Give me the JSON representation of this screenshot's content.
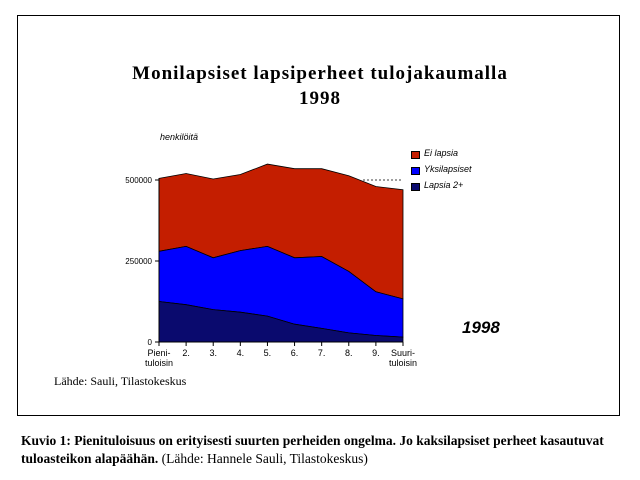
{
  "chart_data": {
    "type": "area",
    "stacked": true,
    "title_line1": "Monilapsiset lapsiperheet tulojakaumalla",
    "title_line2": "1998",
    "ylabel": "henkilöitä",
    "ylim": [
      0,
      500000
    ],
    "y_ticks": [
      {
        "value": 0,
        "label": "0"
      },
      {
        "value": 250000,
        "label": "250000"
      },
      {
        "value": 500000,
        "label": "500000"
      }
    ],
    "categories": [
      "Pieni-\ntuloisin",
      "2.",
      "3.",
      "4.",
      "5.",
      "6.",
      "7.",
      "8.",
      "9.",
      "Suuri-\ntuloisin"
    ],
    "series": [
      {
        "name": "Lapsia 2+",
        "color": "#0a0a6e",
        "values": [
          125000,
          115000,
          100000,
          92000,
          80000,
          55000,
          42000,
          28000,
          20000,
          15000
        ]
      },
      {
        "name": "Yksilapsiset",
        "color": "#0000ff",
        "values": [
          155000,
          180000,
          160000,
          190000,
          215000,
          205000,
          222000,
          190000,
          135000,
          118000
        ]
      },
      {
        "name": "Ei lapsia",
        "color": "#c41e00",
        "values": [
          225000,
          225000,
          243000,
          235000,
          254000,
          275000,
          271000,
          295000,
          325000,
          337000
        ]
      }
    ],
    "legend_order": [
      "Ei lapsia",
      "Yksilapsiset",
      "Lapsia 2+"
    ],
    "legend_position": "top-right",
    "reference_line": {
      "value": 500000,
      "style": "dashed"
    },
    "annotation": "1998",
    "source": "Lähde: Sauli, Tilastokeskus"
  },
  "caption": {
    "bold": "Kuvio 1: Pienituloisuus on erityisesti suurten perheiden ongelma. Jo kaksilapsiset perheet kasautuvat tuloasteikon alapäähän.",
    "normal": " (Lähde: Hannele Sauli, Tilastokeskus)"
  }
}
